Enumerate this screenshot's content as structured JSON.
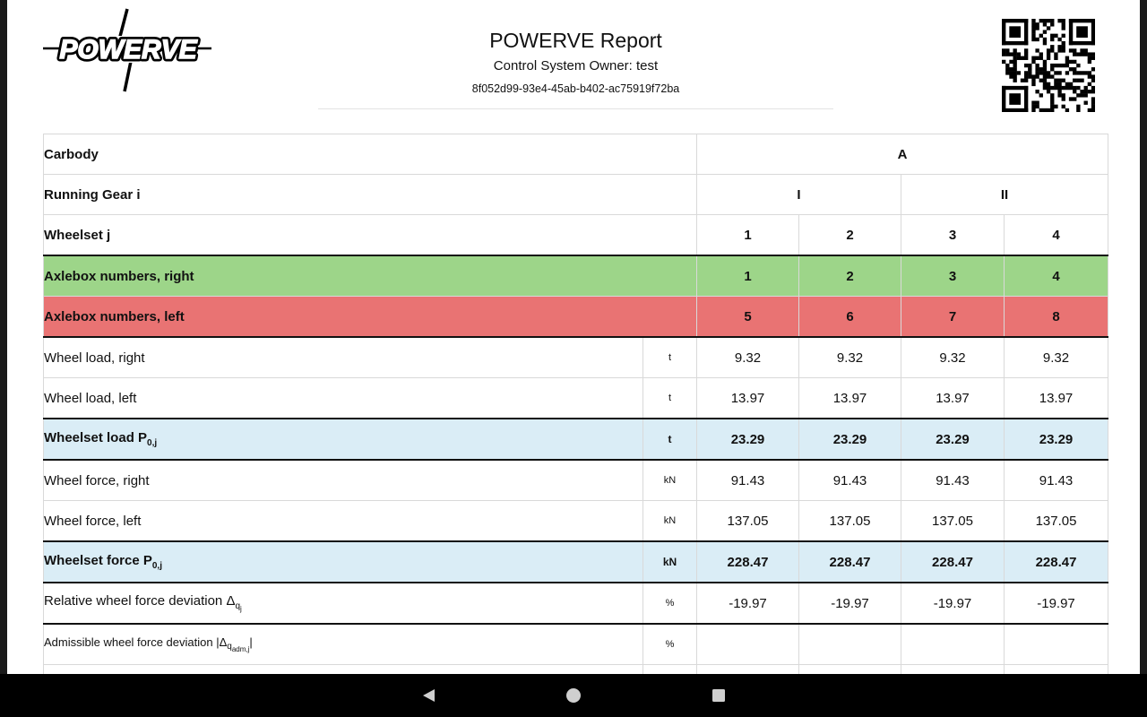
{
  "header": {
    "brand": "POWERVE",
    "title": "POWERVE Report",
    "owner": "Control System Owner: test",
    "uuid": "8f052d99-93e4-45ab-b402-ac75919f72ba",
    "qr_icon": "qr-code-icon"
  },
  "table": {
    "carbody_label": "Carbody",
    "carbody_value": "A",
    "running_gear_label": "Running Gear i",
    "running_gear_values": [
      "I",
      "II"
    ],
    "wheelset_label": "Wheelset j",
    "wheelsets": [
      "1",
      "2",
      "3",
      "4"
    ],
    "axle_right": {
      "label": "Axlebox numbers, right",
      "values": [
        "1",
        "2",
        "3",
        "4"
      ],
      "color": "#9dd589"
    },
    "axle_left": {
      "label": "Axlebox numbers, left",
      "values": [
        "5",
        "6",
        "7",
        "8"
      ],
      "color": "#e97373"
    },
    "rows": [
      {
        "label": "Wheel load, right",
        "unit": "t",
        "values": [
          "9.32",
          "9.32",
          "9.32",
          "9.32"
        ]
      },
      {
        "label": "Wheel load, left",
        "unit": "t",
        "values": [
          "13.97",
          "13.97",
          "13.97",
          "13.97"
        ]
      },
      {
        "label": "Wheelset load P",
        "sub": "0,j",
        "unit": "t",
        "values": [
          "23.29",
          "23.29",
          "23.29",
          "23.29"
        ]
      },
      {
        "label": "Wheel force, right",
        "unit": "kN",
        "values": [
          "91.43",
          "91.43",
          "91.43",
          "91.43"
        ]
      },
      {
        "label": "Wheel force, left",
        "unit": "kN",
        "values": [
          "137.05",
          "137.05",
          "137.05",
          "137.05"
        ]
      },
      {
        "label": "Wheelset force P",
        "sub": "0,j",
        "unit": "kN",
        "values": [
          "228.47",
          "228.47",
          "228.47",
          "228.47"
        ]
      },
      {
        "label": "Relative wheel force deviation Δ",
        "sub": "q",
        "subsub": "j",
        "unit": "%",
        "values": [
          "-19.97",
          "-19.97",
          "-19.97",
          "-19.97"
        ]
      },
      {
        "label_pre": "Admissible wheel force deviation |Δ",
        "sub": "q",
        "subsub": "adm,j",
        "label_post": "|",
        "unit": "%",
        "values": [
          "",
          "",
          "",
          ""
        ]
      }
    ],
    "summary_color": "#daedf6"
  },
  "navbar": {
    "back_icon": "back-triangle-icon",
    "home_icon": "home-circle-icon",
    "recents_icon": "recents-square-icon"
  }
}
